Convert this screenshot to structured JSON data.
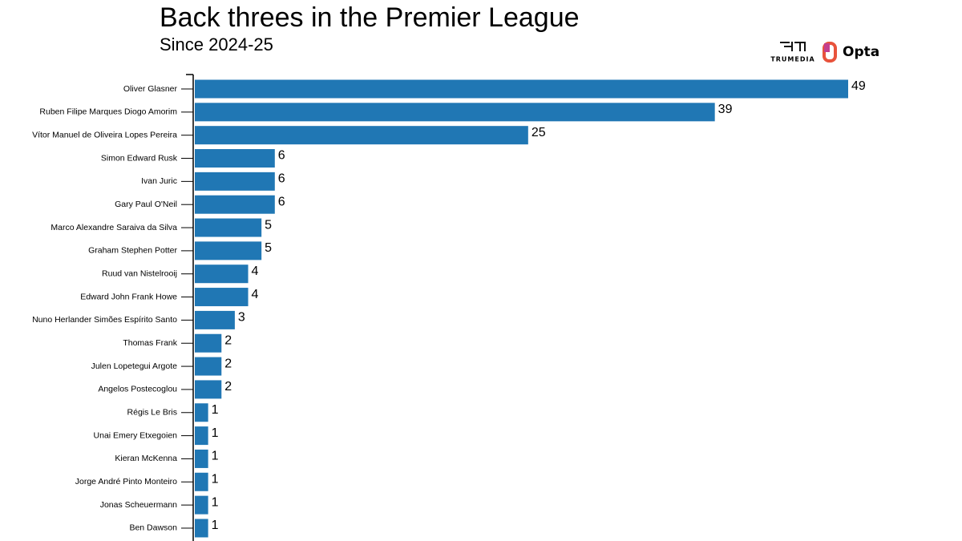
{
  "chart_data": {
    "type": "bar",
    "orientation": "horizontal",
    "title": "Back threes in the Premier League",
    "subtitle": "Since 2024-25",
    "sources": [
      "TRUMEDIA",
      "Opta"
    ],
    "color": "#2077b4",
    "categories": [
      "Oliver Glasner",
      "Ruben Filipe Marques Diogo Amorim",
      "Vítor Manuel de Oliveira Lopes Pereira",
      "Simon Edward Rusk",
      "Ivan Juric",
      "Gary Paul O'Neil",
      "Marco Alexandre Saraiva da Silva",
      "Graham Stephen Potter",
      "Ruud van Nistelrooij",
      "Edward John Frank Howe",
      "Nuno Herlander Simões Espírito Santo",
      "Thomas Frank",
      "Julen Lopetegui Argote",
      "Angelos Postecoglou",
      "Régis Le Bris",
      "Unai Emery Etxegoien",
      "Kieran McKenna",
      "Jorge André Pinto Monteiro",
      "Jonas Scheuermann",
      "Ben Dawson"
    ],
    "values": [
      49,
      39,
      25,
      6,
      6,
      6,
      5,
      5,
      4,
      4,
      3,
      2,
      2,
      2,
      1,
      1,
      1,
      1,
      1,
      1
    ]
  }
}
